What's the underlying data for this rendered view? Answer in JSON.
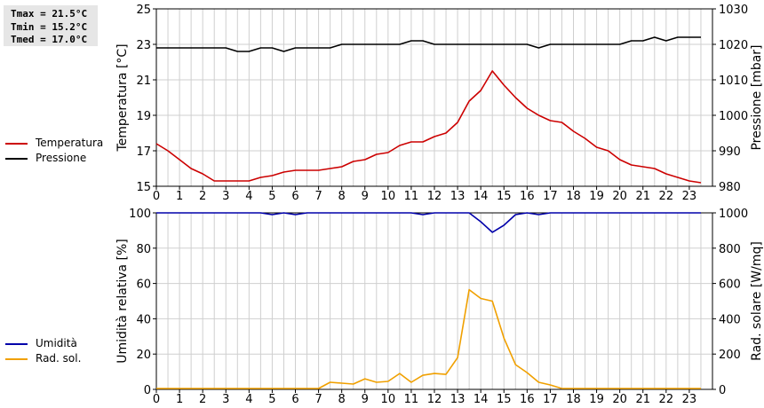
{
  "stats": {
    "tmax": "Tmax = 21.5°C",
    "tmin": "Tmin = 15.2°C",
    "tmed": "Tmed = 17.0°C"
  },
  "chart_data": [
    {
      "type": "line",
      "x_ticks": [
        "0",
        "1",
        "2",
        "3",
        "4",
        "5",
        "6",
        "7",
        "8",
        "9",
        "10",
        "11",
        "12",
        "13",
        "14",
        "15",
        "16",
        "17",
        "18",
        "19",
        "20",
        "21",
        "22",
        "23"
      ],
      "xlim": [
        0,
        24
      ],
      "y_left": {
        "label": "Temperatura [°C]",
        "lim": [
          15,
          25
        ],
        "ticks": [
          "15",
          "17",
          "19",
          "21",
          "23",
          "25"
        ]
      },
      "y_right": {
        "label": "Pressione [mbar]",
        "lim": [
          980,
          1030
        ],
        "ticks": [
          "980",
          "990",
          "1000",
          "1010",
          "1020",
          "1030"
        ]
      },
      "grid": true,
      "legend_position": "left",
      "series": [
        {
          "name": "Temperatura",
          "axis": "left",
          "color": "#cc0000",
          "x": [
            0,
            0.5,
            1,
            1.5,
            2,
            2.5,
            3,
            3.5,
            4,
            4.5,
            5,
            5.5,
            6,
            6.5,
            7,
            7.5,
            8,
            8.5,
            9,
            9.5,
            10,
            10.5,
            11,
            11.5,
            12,
            12.5,
            13,
            13.5,
            14,
            14.5,
            15,
            15.5,
            16,
            16.5,
            17,
            17.5,
            18,
            18.5,
            19,
            19.5,
            20,
            20.5,
            21,
            21.5,
            22,
            22.5,
            23,
            23.5
          ],
          "values": [
            17.4,
            17.0,
            16.5,
            16.0,
            15.7,
            15.3,
            15.3,
            15.3,
            15.3,
            15.5,
            15.6,
            15.8,
            15.9,
            15.9,
            15.9,
            16.0,
            16.1,
            16.4,
            16.5,
            16.8,
            16.9,
            17.3,
            17.5,
            17.5,
            17.8,
            18.0,
            18.6,
            19.8,
            20.4,
            21.5,
            20.7,
            20.0,
            19.4,
            19.0,
            18.7,
            18.6,
            18.1,
            17.7,
            17.2,
            17.0,
            16.5,
            16.2,
            16.1,
            16.0,
            15.7,
            15.5,
            15.3,
            15.2
          ]
        },
        {
          "name": "Pressione",
          "axis": "right",
          "color": "#000000",
          "x": [
            0,
            0.5,
            1,
            1.5,
            2,
            2.5,
            3,
            3.5,
            4,
            4.5,
            5,
            5.5,
            6,
            6.5,
            7,
            7.5,
            8,
            8.5,
            9,
            9.5,
            10,
            10.5,
            11,
            11.5,
            12,
            12.5,
            13,
            13.5,
            14,
            14.5,
            15,
            15.5,
            16,
            16.5,
            17,
            17.5,
            18,
            18.5,
            19,
            19.5,
            20,
            20.5,
            21,
            21.5,
            22,
            22.5,
            23,
            23.5
          ],
          "values": [
            1019,
            1019,
            1019,
            1019,
            1019,
            1019,
            1019,
            1018,
            1018,
            1019,
            1019,
            1018,
            1019,
            1019,
            1019,
            1019,
            1020,
            1020,
            1020,
            1020,
            1020,
            1020,
            1021,
            1021,
            1020,
            1020,
            1020,
            1020,
            1020,
            1020,
            1020,
            1020,
            1020,
            1019,
            1020,
            1020,
            1020,
            1020,
            1020,
            1020,
            1020,
            1021,
            1021,
            1022,
            1021,
            1022,
            1022,
            1022
          ]
        }
      ]
    },
    {
      "type": "line",
      "x_ticks": [
        "0",
        "1",
        "2",
        "3",
        "4",
        "5",
        "6",
        "7",
        "8",
        "9",
        "10",
        "11",
        "12",
        "13",
        "14",
        "15",
        "16",
        "17",
        "18",
        "19",
        "20",
        "21",
        "22",
        "23"
      ],
      "xlim": [
        0,
        24
      ],
      "y_left": {
        "label": "Umidità relativa [%]",
        "lim": [
          0,
          100
        ],
        "ticks": [
          "0",
          "20",
          "40",
          "60",
          "80",
          "100"
        ]
      },
      "y_right": {
        "label": "Rad. solare [W/mq]",
        "lim": [
          0,
          1000
        ],
        "ticks": [
          "0",
          "200",
          "400",
          "600",
          "800",
          "1000"
        ]
      },
      "grid": true,
      "legend_position": "left",
      "series": [
        {
          "name": "Umidità",
          "axis": "left",
          "color": "#0000aa",
          "x": [
            0,
            0.5,
            1,
            1.5,
            2,
            2.5,
            3,
            3.5,
            4,
            4.5,
            5,
            5.5,
            6,
            6.5,
            7,
            7.5,
            8,
            8.5,
            9,
            9.5,
            10,
            10.5,
            11,
            11.5,
            12,
            12.5,
            13,
            13.5,
            14,
            14.5,
            15,
            15.5,
            16,
            16.5,
            17,
            17.5,
            18,
            18.5,
            19,
            19.5,
            20,
            20.5,
            21,
            21.5,
            22,
            22.5,
            23,
            23.5
          ],
          "values": [
            100,
            100,
            100,
            100,
            100,
            100,
            100,
            100,
            100,
            100,
            99,
            100,
            99,
            100,
            100,
            100,
            100,
            100,
            100,
            100,
            100,
            100,
            100,
            99,
            100,
            100,
            100,
            100,
            95,
            89,
            93,
            99,
            100,
            99,
            100,
            100,
            100,
            100,
            100,
            100,
            100,
            100,
            100,
            100,
            100,
            100,
            100,
            100
          ]
        },
        {
          "name": "Rad. sol.",
          "axis": "right",
          "color": "#f0a000",
          "x": [
            0,
            0.5,
            1,
            1.5,
            2,
            2.5,
            3,
            3.5,
            4,
            4.5,
            5,
            5.5,
            6,
            6.5,
            7,
            7.5,
            8,
            8.5,
            9,
            9.5,
            10,
            10.5,
            11,
            11.5,
            12,
            12.5,
            13,
            13.5,
            14,
            14.5,
            15,
            15.5,
            16,
            16.5,
            17,
            17.5,
            18,
            18.5,
            19,
            19.5,
            20,
            20.5,
            21,
            21.5,
            22,
            22.5,
            23,
            23.5
          ],
          "values": [
            5,
            5,
            5,
            5,
            5,
            5,
            5,
            5,
            5,
            5,
            5,
            5,
            5,
            5,
            5,
            40,
            35,
            30,
            60,
            40,
            45,
            90,
            40,
            80,
            90,
            85,
            180,
            565,
            515,
            500,
            290,
            140,
            95,
            40,
            25,
            5,
            5,
            5,
            5,
            5,
            5,
            5,
            5,
            5,
            5,
            5,
            5,
            5
          ]
        }
      ]
    }
  ]
}
